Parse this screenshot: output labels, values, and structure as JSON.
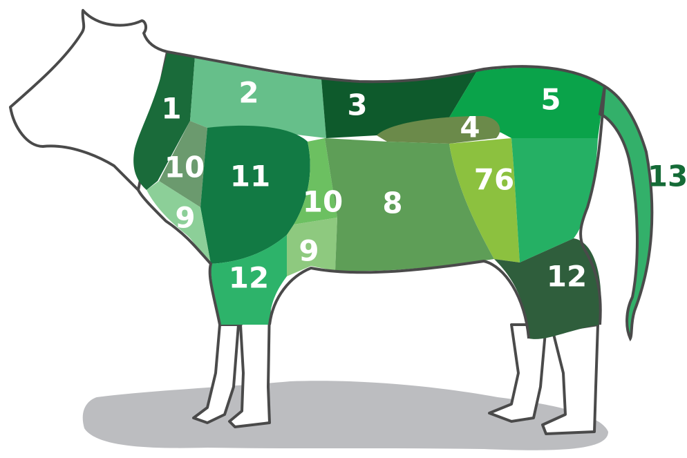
{
  "cuts": [
    {
      "label": "1"
    },
    {
      "label": "2"
    },
    {
      "label": "3"
    },
    {
      "label": "4"
    },
    {
      "label": "5"
    },
    {
      "label": "10"
    },
    {
      "label": "11"
    },
    {
      "label": "10"
    },
    {
      "label": "8"
    },
    {
      "label": "76"
    },
    {
      "label": "13"
    },
    {
      "label": "9"
    },
    {
      "label": "9"
    },
    {
      "label": "12"
    },
    {
      "label": "12"
    }
  ]
}
